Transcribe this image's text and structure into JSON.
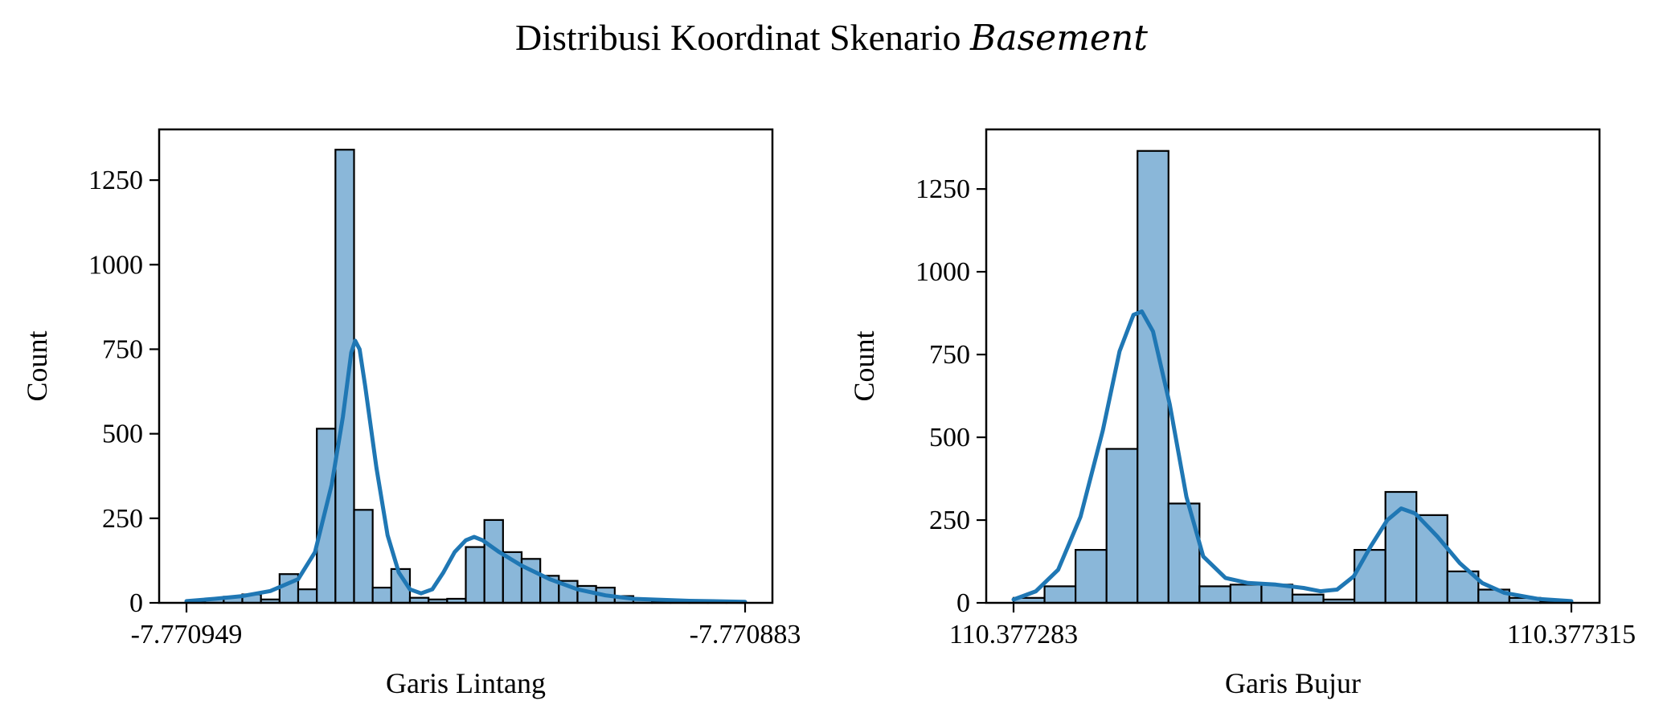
{
  "figure": {
    "title_prefix": "Distribusi Koordinat Skenario",
    "title_italic": "Basement"
  },
  "colors": {
    "bar_fill": "#8ab7d9",
    "bar_edge": "#000000",
    "kde_line": "#1f77b4"
  },
  "chart_data": [
    {
      "type": "bar",
      "subtype": "histogram_with_kde",
      "xlabel": "Garis Lintang",
      "ylabel": "Count",
      "xtick_labels": [
        "-7.770949",
        "-7.770883"
      ],
      "yticks": [
        0,
        250,
        500,
        750,
        1000,
        1250
      ],
      "ylim": [
        0,
        1400
      ],
      "bin_count": 30,
      "values": [
        5,
        12,
        18,
        25,
        10,
        85,
        40,
        515,
        1340,
        275,
        45,
        100,
        15,
        10,
        12,
        165,
        245,
        150,
        130,
        80,
        65,
        50,
        45,
        20,
        10,
        5,
        5,
        5,
        3,
        2
      ],
      "kde": [
        [
          0.0,
          5
        ],
        [
          0.05,
          12
        ],
        [
          0.1,
          20
        ],
        [
          0.15,
          35
        ],
        [
          0.2,
          70
        ],
        [
          0.23,
          150
        ],
        [
          0.26,
          350
        ],
        [
          0.28,
          550
        ],
        [
          0.295,
          740
        ],
        [
          0.302,
          775
        ],
        [
          0.31,
          750
        ],
        [
          0.32,
          640
        ],
        [
          0.34,
          400
        ],
        [
          0.36,
          200
        ],
        [
          0.38,
          90
        ],
        [
          0.4,
          40
        ],
        [
          0.42,
          28
        ],
        [
          0.44,
          40
        ],
        [
          0.46,
          90
        ],
        [
          0.48,
          150
        ],
        [
          0.5,
          185
        ],
        [
          0.515,
          195
        ],
        [
          0.53,
          185
        ],
        [
          0.56,
          150
        ],
        [
          0.6,
          110
        ],
        [
          0.65,
          70
        ],
        [
          0.7,
          40
        ],
        [
          0.75,
          22
        ],
        [
          0.8,
          12
        ],
        [
          0.9,
          6
        ],
        [
          1.0,
          3
        ]
      ]
    },
    {
      "type": "bar",
      "subtype": "histogram_with_kde",
      "xlabel": "Garis Bujur",
      "ylabel": "Count",
      "xtick_labels": [
        "110.377283",
        "110.377315"
      ],
      "yticks": [
        0,
        250,
        500,
        750,
        1000,
        1250
      ],
      "ylim": [
        0,
        1430
      ],
      "bin_count": 18,
      "values": [
        15,
        50,
        160,
        465,
        1365,
        300,
        50,
        55,
        55,
        25,
        10,
        160,
        335,
        265,
        95,
        40,
        15,
        5
      ],
      "kde": [
        [
          0.0,
          10
        ],
        [
          0.04,
          35
        ],
        [
          0.08,
          100
        ],
        [
          0.12,
          260
        ],
        [
          0.16,
          520
        ],
        [
          0.19,
          760
        ],
        [
          0.215,
          870
        ],
        [
          0.23,
          880
        ],
        [
          0.25,
          820
        ],
        [
          0.28,
          600
        ],
        [
          0.31,
          320
        ],
        [
          0.34,
          140
        ],
        [
          0.38,
          75
        ],
        [
          0.42,
          60
        ],
        [
          0.47,
          55
        ],
        [
          0.52,
          45
        ],
        [
          0.55,
          35
        ],
        [
          0.58,
          40
        ],
        [
          0.61,
          80
        ],
        [
          0.64,
          170
        ],
        [
          0.67,
          250
        ],
        [
          0.695,
          285
        ],
        [
          0.72,
          270
        ],
        [
          0.76,
          200
        ],
        [
          0.8,
          120
        ],
        [
          0.84,
          60
        ],
        [
          0.88,
          30
        ],
        [
          0.94,
          12
        ],
        [
          1.0,
          5
        ]
      ]
    }
  ]
}
